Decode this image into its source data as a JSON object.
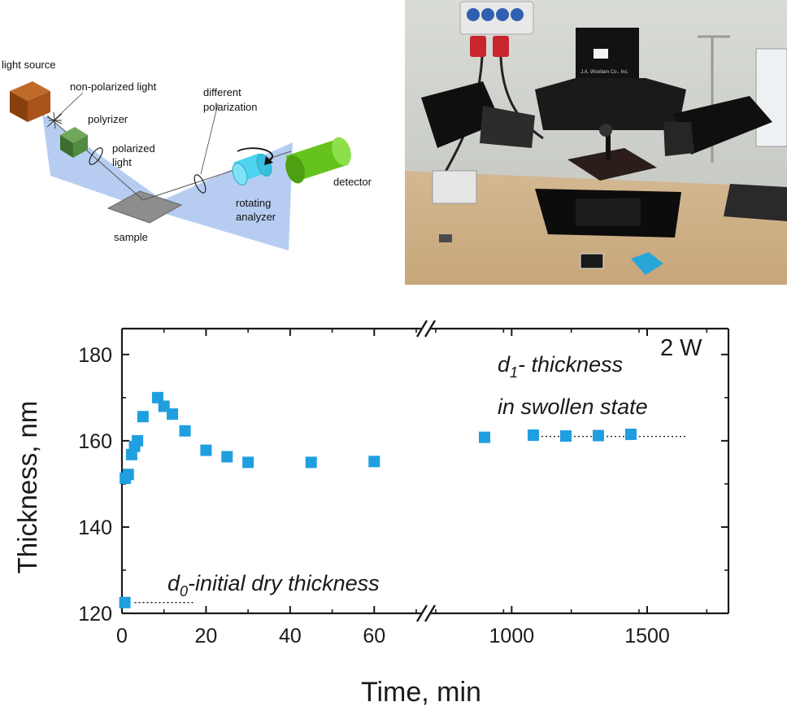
{
  "diagram": {
    "labels": {
      "light_source": "light source",
      "non_polarized": "non-polarized light",
      "polarizer": "polyrizer",
      "polarized_light_1": "polarized",
      "polarized_light_2": "light",
      "different_pol_1": "different",
      "different_pol_2": "polarization",
      "sample": "sample",
      "rotating_analyzer_1": "rotating",
      "rotating_analyzer_2": "analyzer",
      "detector": "detector"
    },
    "colors": {
      "beam": "#a9c4ee",
      "source": "#9c4a12",
      "polarizer": "#4f8a3c",
      "analyzer": "#4fd3ef",
      "detector": "#66c31c",
      "sample": "#8d8d8d"
    }
  },
  "photo": {
    "plate_text": "J.A. Woollam Co., Inc."
  },
  "chart_data": {
    "type": "scatter",
    "title": "",
    "xlabel": "Time, min",
    "ylabel": "Thickness, nm",
    "segments": [
      {
        "xlim": [
          0,
          70
        ],
        "ticks": [
          0,
          20,
          40,
          60
        ]
      },
      {
        "xlim": [
          720,
          1800
        ],
        "ticks": [
          1000,
          1500
        ]
      }
    ],
    "ylim": [
      120,
      186
    ],
    "yticks": [
      120,
      140,
      160,
      180
    ],
    "grid": false,
    "marker_color": "#1f9fe0",
    "series": [
      {
        "points": [
          [
            0.7,
            122.5
          ],
          [
            0.8,
            151.3
          ],
          [
            1.5,
            152.2
          ],
          [
            2.3,
            156.8
          ],
          [
            3.0,
            158.7
          ],
          [
            3.7,
            160.0
          ],
          [
            5.0,
            165.6
          ],
          [
            8.5,
            170.0
          ],
          [
            10.0,
            168.0
          ],
          [
            12.0,
            166.2
          ],
          [
            15.0,
            162.3
          ],
          [
            20.0,
            157.8
          ],
          [
            25.0,
            156.3
          ],
          [
            30.0,
            155.0
          ],
          [
            45.0,
            155.0
          ],
          [
            60.0,
            155.2
          ],
          [
            900,
            160.8
          ],
          [
            1080,
            161.3
          ],
          [
            1200,
            161.1
          ],
          [
            1320,
            161.2
          ],
          [
            1440,
            161.5
          ]
        ]
      }
    ],
    "reference_lines": [
      {
        "y": 122.5,
        "from_x": 3,
        "to_x": 17.5
      },
      {
        "y": 161,
        "from_x": 1080,
        "to_x": 1650
      }
    ],
    "annotations": {
      "corner": "2 W",
      "d1_sym": "d",
      "d1_sub": "1",
      "d1_rest": "- thickness",
      "d1_line2": "in swollen state",
      "d0_sym": "d",
      "d0_sub": "0",
      "d0_rest": "-initial dry thickness"
    }
  }
}
